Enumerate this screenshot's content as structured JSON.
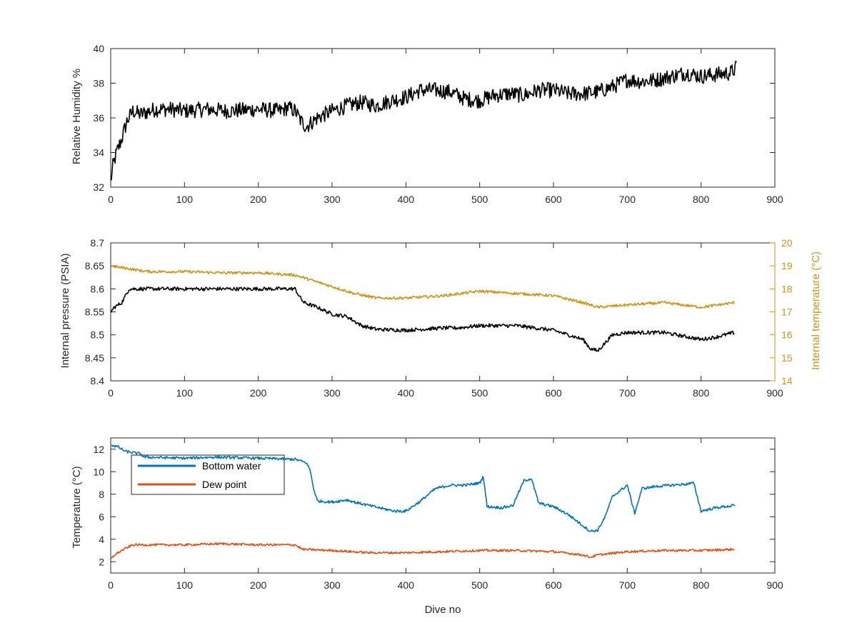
{
  "chart_data": [
    {
      "type": "line",
      "id": "humidity",
      "xlabel": "",
      "ylabel": "Relative Humidity %",
      "xlim": [
        0,
        900
      ],
      "ylim": [
        32,
        40
      ],
      "xticks": [
        0,
        100,
        200,
        300,
        400,
        500,
        600,
        700,
        800,
        900
      ],
      "yticks": [
        32,
        34,
        36,
        38,
        40
      ],
      "series": [
        {
          "color": "#000000",
          "noise": 0.45,
          "x": [
            0,
            3,
            8,
            15,
            22,
            30,
            40,
            60,
            80,
            100,
            130,
            160,
            200,
            230,
            240,
            250,
            258,
            265,
            280,
            300,
            320,
            340,
            360,
            380,
            400,
            420,
            440,
            460,
            470,
            480,
            500,
            520,
            540,
            560,
            580,
            600,
            620,
            640,
            660,
            680,
            700,
            720,
            740,
            760,
            780,
            800,
            820,
            840,
            848
          ],
          "y": [
            32.3,
            33.2,
            34.0,
            34.8,
            35.8,
            36.4,
            36.2,
            36.5,
            36.5,
            36.4,
            36.5,
            36.4,
            36.5,
            36.4,
            36.6,
            36.4,
            35.8,
            35.5,
            36.0,
            36.4,
            36.7,
            36.9,
            36.7,
            37.0,
            37.2,
            37.6,
            37.6,
            37.5,
            37.3,
            37.1,
            37.0,
            37.3,
            37.4,
            37.3,
            37.6,
            37.6,
            37.4,
            37.4,
            37.5,
            37.8,
            38.2,
            38.1,
            38.2,
            38.4,
            38.6,
            38.4,
            38.5,
            38.6,
            38.9
          ]
        }
      ]
    },
    {
      "type": "line",
      "id": "pressure-temperature",
      "xlabel": "",
      "ylabel": "Internal pressure (PSIA)",
      "y2label": "Internal temperature (°C)",
      "xlim": [
        0,
        900
      ],
      "ylim": [
        8.4,
        8.7
      ],
      "y2lim": [
        14,
        20
      ],
      "xticks": [
        0,
        100,
        200,
        300,
        400,
        500,
        600,
        700,
        800,
        900
      ],
      "yticks": [
        8.4,
        8.45,
        8.5,
        8.55,
        8.6,
        8.65,
        8.7
      ],
      "y2ticks": [
        14,
        15,
        16,
        17,
        18,
        19,
        20
      ],
      "series": [
        {
          "color": "#000000",
          "axis": "left",
          "noise": 0.004,
          "x": [
            0,
            5,
            15,
            25,
            50,
            100,
            150,
            200,
            250,
            255,
            262,
            280,
            300,
            320,
            340,
            360,
            400,
            450,
            470,
            500,
            550,
            600,
            620,
            640,
            650,
            660,
            680,
            700,
            750,
            800,
            820,
            845
          ],
          "y": [
            8.55,
            8.56,
            8.57,
            8.6,
            8.6,
            8.6,
            8.6,
            8.6,
            8.6,
            8.585,
            8.57,
            8.56,
            8.545,
            8.54,
            8.52,
            8.512,
            8.51,
            8.515,
            8.515,
            8.52,
            8.52,
            8.51,
            8.5,
            8.49,
            8.47,
            8.465,
            8.5,
            8.505,
            8.505,
            8.49,
            8.495,
            8.505
          ]
        },
        {
          "color": "#C9961C",
          "axis": "right",
          "noise": 0.06,
          "x": [
            0,
            20,
            50,
            100,
            150,
            200,
            250,
            270,
            300,
            330,
            360,
            400,
            450,
            500,
            550,
            600,
            640,
            660,
            700,
            750,
            800,
            845
          ],
          "y": [
            19.0,
            18.9,
            18.75,
            18.75,
            18.7,
            18.7,
            18.6,
            18.4,
            18.1,
            17.8,
            17.6,
            17.6,
            17.7,
            17.9,
            17.8,
            17.7,
            17.4,
            17.2,
            17.3,
            17.4,
            17.2,
            17.4
          ]
        }
      ]
    },
    {
      "type": "line",
      "id": "temperature",
      "xlabel": "Dive no",
      "ylabel": "Temperature (°C)",
      "xlim": [
        0,
        900
      ],
      "ylim": [
        1,
        13
      ],
      "xticks": [
        0,
        100,
        200,
        300,
        400,
        500,
        600,
        700,
        800,
        900
      ],
      "yticks": [
        2,
        4,
        6,
        8,
        10,
        12
      ],
      "legend": "top-left",
      "series": [
        {
          "name": "Bottom water",
          "color": "#0072BD",
          "noise": 0.12,
          "x": [
            0,
            10,
            20,
            40,
            45,
            100,
            140,
            200,
            250,
            265,
            270,
            275,
            280,
            300,
            320,
            330,
            350,
            370,
            385,
            400,
            420,
            440,
            460,
            480,
            500,
            505,
            510,
            530,
            545,
            560,
            570,
            580,
            600,
            620,
            640,
            650,
            660,
            670,
            680,
            700,
            710,
            720,
            740,
            760,
            780,
            790,
            800,
            820,
            846
          ],
          "y": [
            12.4,
            12.2,
            11.8,
            11.6,
            11.3,
            11.2,
            11.3,
            11.2,
            11.1,
            10.8,
            10.2,
            8.5,
            7.4,
            7.3,
            7.5,
            7.3,
            7.0,
            6.7,
            6.5,
            6.5,
            7.4,
            8.5,
            8.8,
            8.8,
            9.0,
            9.6,
            6.9,
            6.8,
            7.0,
            9.2,
            9.4,
            7.2,
            6.9,
            6.2,
            5.2,
            4.7,
            4.8,
            6.0,
            7.8,
            8.8,
            6.3,
            8.5,
            8.7,
            8.8,
            8.9,
            9.0,
            6.5,
            6.8,
            7.0
          ]
        },
        {
          "name": "Dew point",
          "color": "#D95319",
          "noise": 0.1,
          "x": [
            0,
            5,
            15,
            30,
            50,
            100,
            150,
            200,
            250,
            260,
            300,
            350,
            400,
            450,
            500,
            550,
            600,
            640,
            650,
            660,
            700,
            750,
            800,
            845
          ],
          "y": [
            2.2,
            2.6,
            3.0,
            3.5,
            3.5,
            3.5,
            3.6,
            3.5,
            3.5,
            3.1,
            3.0,
            2.8,
            2.8,
            2.9,
            3.0,
            3.0,
            2.9,
            2.6,
            2.4,
            2.6,
            2.9,
            3.0,
            3.0,
            3.1
          ]
        }
      ]
    }
  ]
}
